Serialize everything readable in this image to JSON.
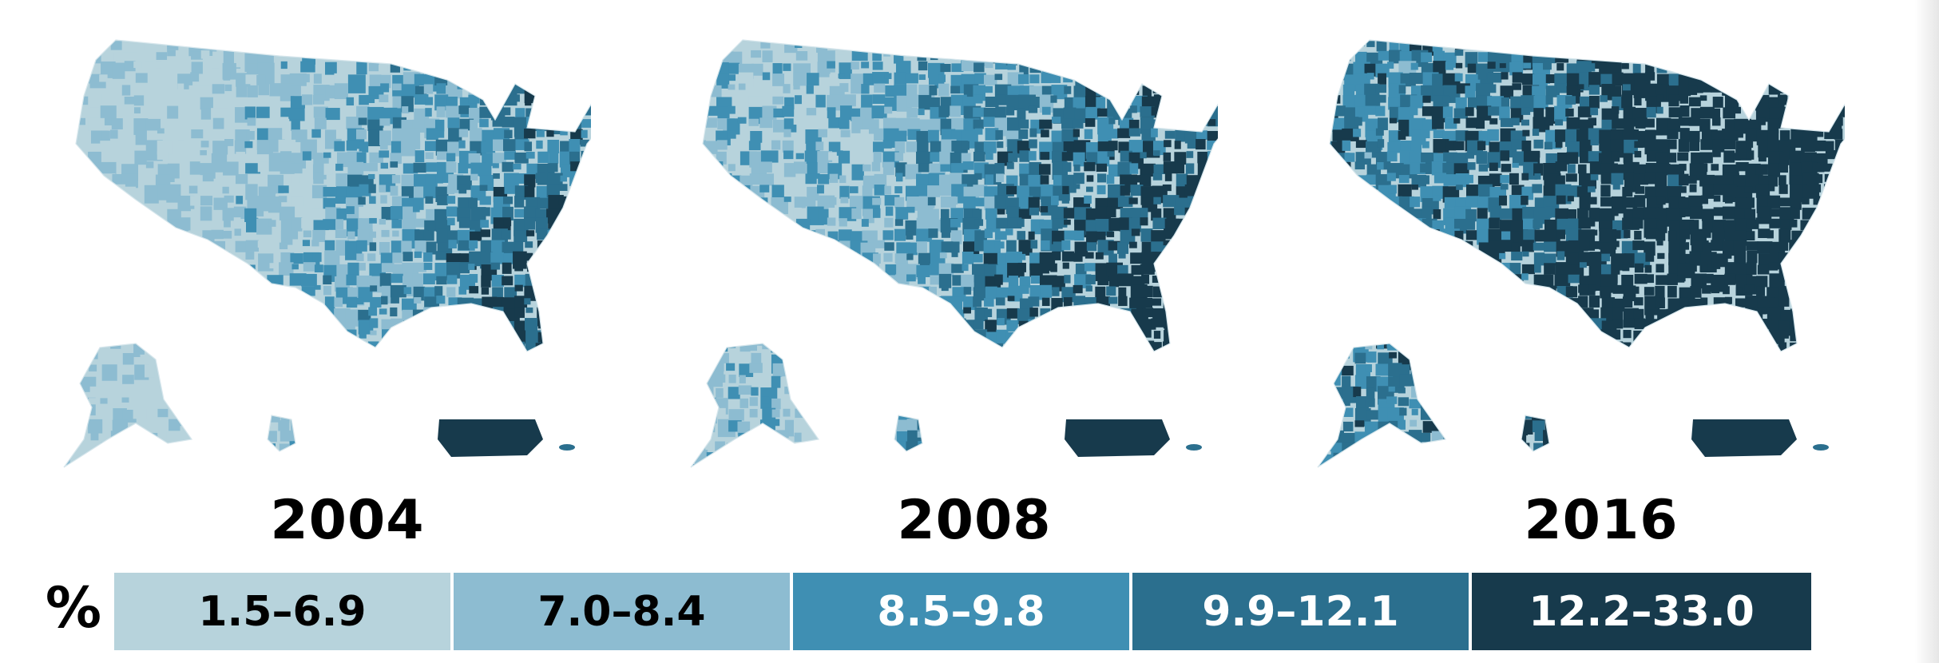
{
  "maps": [
    {
      "year": "2004",
      "fill_level": 0.15
    },
    {
      "year": "2008",
      "fill_level": 0.45
    },
    {
      "year": "2016",
      "fill_level": 0.8
    }
  ],
  "legend": {
    "symbol": "%",
    "bins": [
      {
        "label": "1.5–6.9",
        "color": "#b7d3dc",
        "text_color": "#000000"
      },
      {
        "label": "7.0–8.4",
        "color": "#8dbcd1",
        "text_color": "#000000"
      },
      {
        "label": "8.5–9.8",
        "color": "#3f8fb3",
        "text_color": "#ffffff"
      },
      {
        "label": "9.9–12.1",
        "color": "#2b6f8e",
        "text_color": "#ffffff"
      },
      {
        "label": "12.2–33.0",
        "color": "#173a4c",
        "text_color": "#ffffff"
      }
    ]
  }
}
